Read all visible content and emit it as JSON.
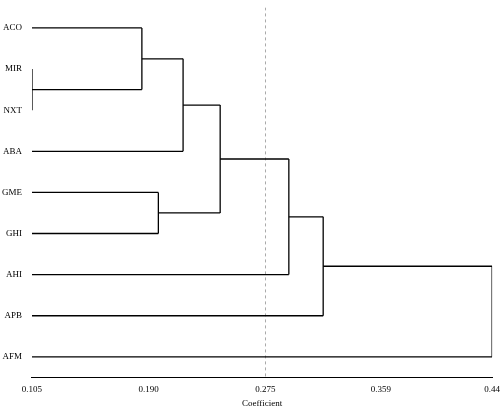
{
  "chart_data": {
    "type": "dendrogram",
    "leaves": [
      "ACO",
      "MIR",
      "NXT",
      "ABA",
      "GME",
      "GHI",
      "AHI",
      "APB",
      "AFM"
    ],
    "merges": [
      {
        "children": [
          1,
          2
        ],
        "height": 0.105
      },
      {
        "children": [
          0,
          9
        ],
        "height": 0.185
      },
      {
        "children": [
          10,
          3
        ],
        "height": 0.215
      },
      {
        "children": [
          4,
          5
        ],
        "height": 0.197
      },
      {
        "children": [
          11,
          12
        ],
        "height": 0.242
      },
      {
        "children": [
          13,
          6
        ],
        "height": 0.292
      },
      {
        "children": [
          14,
          7
        ],
        "height": 0.317
      },
      {
        "children": [
          15,
          8
        ],
        "height": 0.44
      }
    ],
    "x_label": "Coefficient",
    "xlim": [
      0.105,
      0.44
    ],
    "xticks": [
      0.105,
      {
        "value": 0.19,
        "label": "0.190"
      },
      0.275,
      0.359,
      0.44
    ],
    "cut_line": 0.275,
    "color": "#000000",
    "grid": false
  }
}
